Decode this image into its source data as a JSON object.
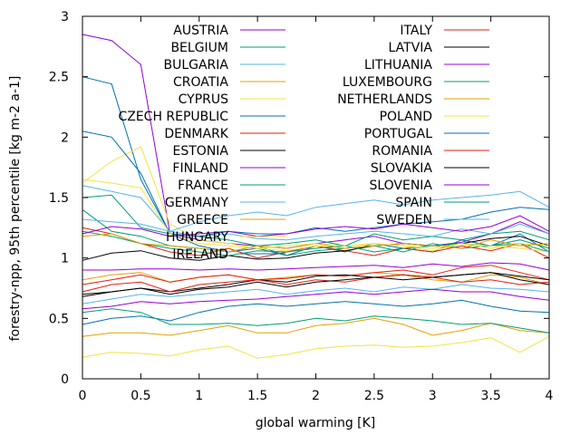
{
  "chart_data": {
    "type": "line",
    "xlabel": "global warming [K]",
    "ylabel": "forestry-npp, 95th percentile [kg m-2 a-1]",
    "xlim": [
      0,
      4
    ],
    "ylim": [
      0,
      3
    ],
    "x_ticks": [
      "0",
      "0.5",
      "1",
      "1.5",
      "2",
      "2.5",
      "3",
      "3.5",
      "4"
    ],
    "y_ticks": [
      "0",
      "0.5",
      "1",
      "1.5",
      "2",
      "2.5",
      "3"
    ],
    "grid": false,
    "legend_position": "top-right",
    "x": [
      0,
      0.25,
      0.5,
      0.75,
      1,
      1.25,
      1.5,
      1.75,
      2,
      2.25,
      2.5,
      2.75,
      3,
      3.25,
      3.5,
      3.75,
      4
    ],
    "series": [
      {
        "name": "AUSTRIA",
        "color": "#9400d3",
        "values": [
          2.85,
          2.8,
          2.6,
          1.2,
          1.15,
          1.12,
          1.1,
          1.08,
          1.12,
          1.15,
          1.18,
          1.12,
          1.1,
          1.13,
          1.2,
          1.3,
          1.2
        ]
      },
      {
        "name": "BELGIUM",
        "color": "#009e73",
        "values": [
          1.5,
          1.52,
          1.25,
          1.2,
          1.18,
          1.15,
          1.1,
          1.12,
          1.15,
          1.1,
          1.2,
          1.15,
          1.18,
          1.15,
          1.2,
          1.22,
          1.15
        ]
      },
      {
        "name": "BULGARIA",
        "color": "#56b4e9",
        "values": [
          0.62,
          0.66,
          0.7,
          0.68,
          0.7,
          0.72,
          0.74,
          0.7,
          0.73,
          0.75,
          0.72,
          0.76,
          0.74,
          0.78,
          0.75,
          0.74,
          0.72
        ]
      },
      {
        "name": "CROATIA",
        "color": "#e69f00",
        "values": [
          0.82,
          0.86,
          0.88,
          0.8,
          0.84,
          0.86,
          0.82,
          0.84,
          0.86,
          0.85,
          0.88,
          0.86,
          0.82,
          0.8,
          0.86,
          0.84,
          0.78
        ]
      },
      {
        "name": "CYPRUS",
        "color": "#f0e442",
        "values": [
          0.18,
          0.22,
          0.21,
          0.19,
          0.24,
          0.27,
          0.17,
          0.2,
          0.25,
          0.27,
          0.28,
          0.26,
          0.27,
          0.3,
          0.34,
          0.22,
          0.35
        ]
      },
      {
        "name": "CZECH REPUBLIC",
        "color": "#0072b2",
        "values": [
          2.5,
          2.44,
          1.65,
          1.2,
          1.1,
          1.05,
          1.08,
          1.02,
          1.1,
          1.05,
          1.12,
          1.08,
          1.05,
          1.15,
          1.1,
          1.2,
          1.05
        ]
      },
      {
        "name": "DENMARK",
        "color": "#e51e10",
        "values": [
          1.25,
          1.2,
          1.12,
          1.05,
          1.02,
          1.08,
          1.0,
          1.05,
          1.1,
          1.06,
          1.02,
          1.08,
          1.05,
          1.1,
          1.06,
          1.12,
          1.0
        ]
      },
      {
        "name": "ESTONIA",
        "color": "#000000",
        "values": [
          0.98,
          1.04,
          1.06,
          1.0,
          0.98,
          1.02,
          0.99,
          1.0,
          1.04,
          1.06,
          1.1,
          1.12,
          1.1,
          1.12,
          1.16,
          1.18,
          1.1
        ]
      },
      {
        "name": "FINLAND",
        "color": "#9400d3",
        "values": [
          0.9,
          0.9,
          0.91,
          0.91,
          0.9,
          0.91,
          0.9,
          0.91,
          0.92,
          0.93,
          0.94,
          0.92,
          0.95,
          0.93,
          0.96,
          0.95,
          0.9
        ]
      },
      {
        "name": "FRANCE",
        "color": "#009e73",
        "values": [
          1.4,
          1.22,
          1.18,
          1.1,
          1.08,
          1.05,
          1.1,
          1.02,
          1.06,
          1.08,
          1.1,
          1.05,
          1.12,
          1.08,
          1.1,
          1.12,
          1.05
        ]
      },
      {
        "name": "GERMANY",
        "color": "#56b4e9",
        "values": [
          1.6,
          1.55,
          1.5,
          1.22,
          1.18,
          1.2,
          1.16,
          1.15,
          1.18,
          1.2,
          1.22,
          1.2,
          1.18,
          1.24,
          1.2,
          1.28,
          1.2
        ]
      },
      {
        "name": "GREECE",
        "color": "#e69f00",
        "values": [
          0.35,
          0.38,
          0.38,
          0.36,
          0.4,
          0.44,
          0.38,
          0.38,
          0.44,
          0.46,
          0.5,
          0.45,
          0.36,
          0.4,
          0.46,
          0.4,
          0.38
        ]
      },
      {
        "name": "HUNGARY",
        "color": "#f0e442",
        "values": [
          1.62,
          1.8,
          1.92,
          1.28,
          1.15,
          1.12,
          1.08,
          1.06,
          1.1,
          1.08,
          1.12,
          1.1,
          1.06,
          1.12,
          1.08,
          1.12,
          1.1
        ]
      },
      {
        "name": "IRELAND",
        "color": "#0072b2",
        "values": [
          2.05,
          2.0,
          1.7,
          1.2,
          1.18,
          1.22,
          1.2,
          1.2,
          1.25,
          1.22,
          1.25,
          1.28,
          1.3,
          1.32,
          1.38,
          1.42,
          1.4
        ]
      },
      {
        "name": "ITALY",
        "color": "#e51e10",
        "values": [
          0.78,
          0.82,
          0.86,
          0.8,
          0.84,
          0.86,
          0.82,
          0.83,
          0.86,
          0.85,
          0.88,
          0.9,
          0.86,
          0.92,
          0.94,
          0.88,
          0.82
        ]
      },
      {
        "name": "LATVIA",
        "color": "#000000",
        "values": [
          0.68,
          0.72,
          0.75,
          0.72,
          0.75,
          0.78,
          0.82,
          0.8,
          0.85,
          0.86,
          0.84,
          0.86,
          0.84,
          0.86,
          0.88,
          0.82,
          0.78
        ]
      },
      {
        "name": "LITHUANIA",
        "color": "#9400d3",
        "values": [
          0.58,
          0.6,
          0.64,
          0.62,
          0.64,
          0.65,
          0.66,
          0.68,
          0.7,
          0.72,
          0.7,
          0.72,
          0.74,
          0.72,
          0.72,
          0.68,
          0.65
        ]
      },
      {
        "name": "LUXEMBOURG",
        "color": "#009e73",
        "values": [
          1.22,
          1.18,
          1.12,
          1.08,
          1.05,
          1.02,
          1.06,
          1.05,
          1.08,
          1.1,
          1.05,
          1.08,
          1.1,
          1.12,
          1.1,
          1.15,
          1.08
        ]
      },
      {
        "name": "NETHERLANDS",
        "color": "#e69f00",
        "values": [
          1.18,
          1.2,
          1.12,
          1.1,
          1.08,
          1.05,
          1.1,
          1.08,
          1.12,
          1.08,
          1.1,
          1.12,
          1.1,
          1.08,
          1.15,
          1.1,
          1.12
        ]
      },
      {
        "name": "POLAND",
        "color": "#f0e442",
        "values": [
          1.65,
          1.62,
          1.58,
          1.2,
          1.12,
          1.1,
          1.08,
          1.1,
          1.12,
          1.1,
          1.12,
          1.1,
          1.08,
          1.12,
          1.1,
          1.08,
          1.05
        ]
      },
      {
        "name": "PORTUGAL",
        "color": "#0072b2",
        "values": [
          0.45,
          0.5,
          0.52,
          0.48,
          0.55,
          0.6,
          0.62,
          0.6,
          0.62,
          0.64,
          0.62,
          0.6,
          0.62,
          0.65,
          0.6,
          0.56,
          0.55
        ]
      },
      {
        "name": "ROMANIA",
        "color": "#e51e10",
        "values": [
          0.72,
          0.78,
          0.8,
          0.72,
          0.78,
          0.8,
          0.82,
          0.78,
          0.82,
          0.8,
          0.84,
          0.86,
          0.84,
          0.8,
          0.82,
          0.78,
          0.8
        ]
      },
      {
        "name": "SLOVAKIA",
        "color": "#000000",
        "values": [
          0.7,
          0.72,
          0.75,
          0.7,
          0.74,
          0.76,
          0.8,
          0.76,
          0.8,
          0.82,
          0.84,
          0.82,
          0.84,
          0.86,
          0.88,
          0.85,
          0.82
        ]
      },
      {
        "name": "SLOVENIA",
        "color": "#9400d3",
        "values": [
          1.2,
          1.26,
          1.24,
          1.18,
          1.2,
          1.22,
          1.18,
          1.2,
          1.24,
          1.26,
          1.24,
          1.28,
          1.25,
          1.22,
          1.26,
          1.35,
          1.22
        ]
      },
      {
        "name": "SPAIN",
        "color": "#009e73",
        "values": [
          0.55,
          0.58,
          0.55,
          0.45,
          0.45,
          0.46,
          0.44,
          0.46,
          0.5,
          0.48,
          0.52,
          0.5,
          0.48,
          0.45,
          0.46,
          0.42,
          0.38
        ]
      },
      {
        "name": "SWEDEN",
        "color": "#56b4e9",
        "values": [
          1.32,
          1.3,
          1.28,
          1.22,
          1.3,
          1.35,
          1.38,
          1.35,
          1.42,
          1.45,
          1.48,
          1.44,
          1.48,
          1.5,
          1.52,
          1.55,
          1.42
        ]
      }
    ]
  }
}
